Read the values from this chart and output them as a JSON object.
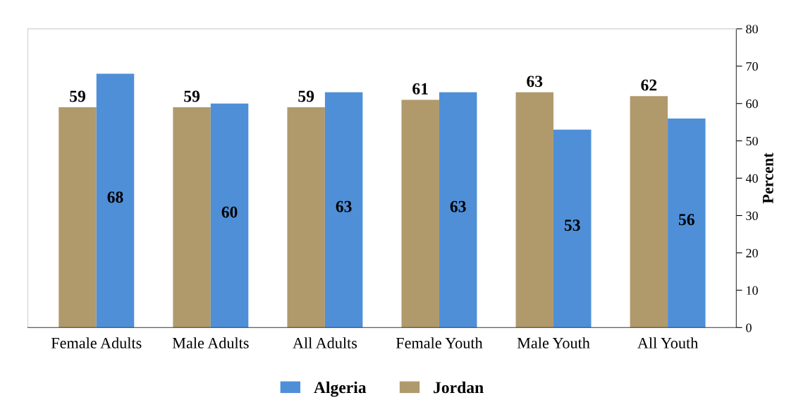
{
  "chart_data": {
    "type": "bar",
    "categories": [
      "Female Adults",
      "Male Adults",
      "All Adults",
      "Female Youth",
      "Male Youth",
      "All Youth"
    ],
    "series": [
      {
        "name": "Jordan",
        "color": "#b09a6c",
        "values": [
          59,
          59,
          59,
          61,
          63,
          62
        ]
      },
      {
        "name": "Algeria",
        "color": "#4f8fd8",
        "values": [
          68,
          60,
          63,
          63,
          53,
          56
        ]
      }
    ],
    "ylabel": "Percent",
    "ylim": [
      0,
      80
    ],
    "yticks": [
      0,
      10,
      20,
      30,
      40,
      50,
      60,
      70,
      80
    ],
    "data_labels": true,
    "legend": "bottom",
    "grid": false
  }
}
